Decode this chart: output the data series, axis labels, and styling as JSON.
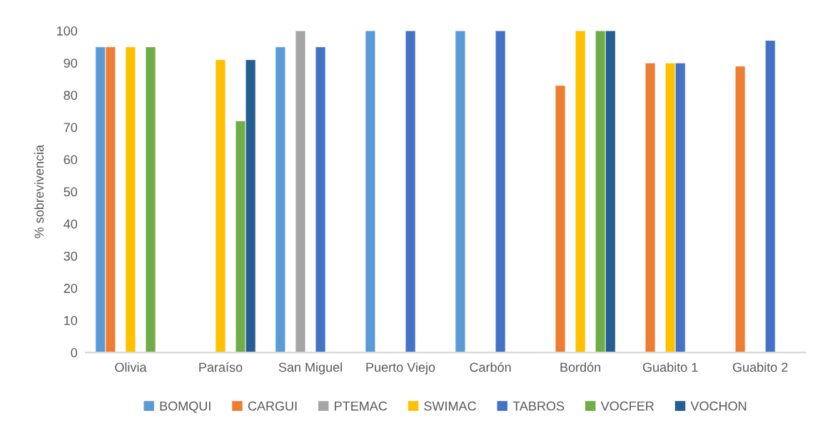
{
  "chart_data": {
    "type": "bar",
    "ylabel": "% sobrevivencia",
    "categories": [
      "Olivia",
      "Paraíso",
      "San Miguel",
      "Puerto Viejo",
      "Carbón",
      "Bordón",
      "Guabito 1",
      "Guabito 2"
    ],
    "series": [
      {
        "name": "BOMQUI",
        "color": "#5b9bd5",
        "values": [
          95,
          null,
          95,
          100,
          100,
          null,
          null,
          null
        ]
      },
      {
        "name": "CARGUI",
        "color": "#ed7d31",
        "values": [
          95,
          null,
          null,
          null,
          null,
          83,
          90,
          89
        ]
      },
      {
        "name": "PTEMAC",
        "color": "#a5a5a5",
        "values": [
          null,
          null,
          100,
          null,
          null,
          null,
          null,
          null
        ]
      },
      {
        "name": "SWIMAC",
        "color": "#ffc000",
        "values": [
          95,
          91,
          null,
          null,
          null,
          100,
          90,
          null
        ]
      },
      {
        "name": "TABROS",
        "color": "#4472c4",
        "values": [
          null,
          null,
          95,
          100,
          100,
          null,
          90,
          97
        ]
      },
      {
        "name": "VOCFER",
        "color": "#70ad47",
        "values": [
          95,
          72,
          null,
          null,
          null,
          100,
          null,
          null
        ]
      },
      {
        "name": "VOCHON",
        "color": "#255e91",
        "values": [
          null,
          91,
          null,
          null,
          null,
          100,
          null,
          null
        ]
      }
    ],
    "ylim": [
      0,
      100
    ],
    "yticks": [
      0,
      10,
      20,
      30,
      40,
      50,
      60,
      70,
      80,
      90,
      100
    ],
    "grid": false,
    "legend": "bottom"
  }
}
